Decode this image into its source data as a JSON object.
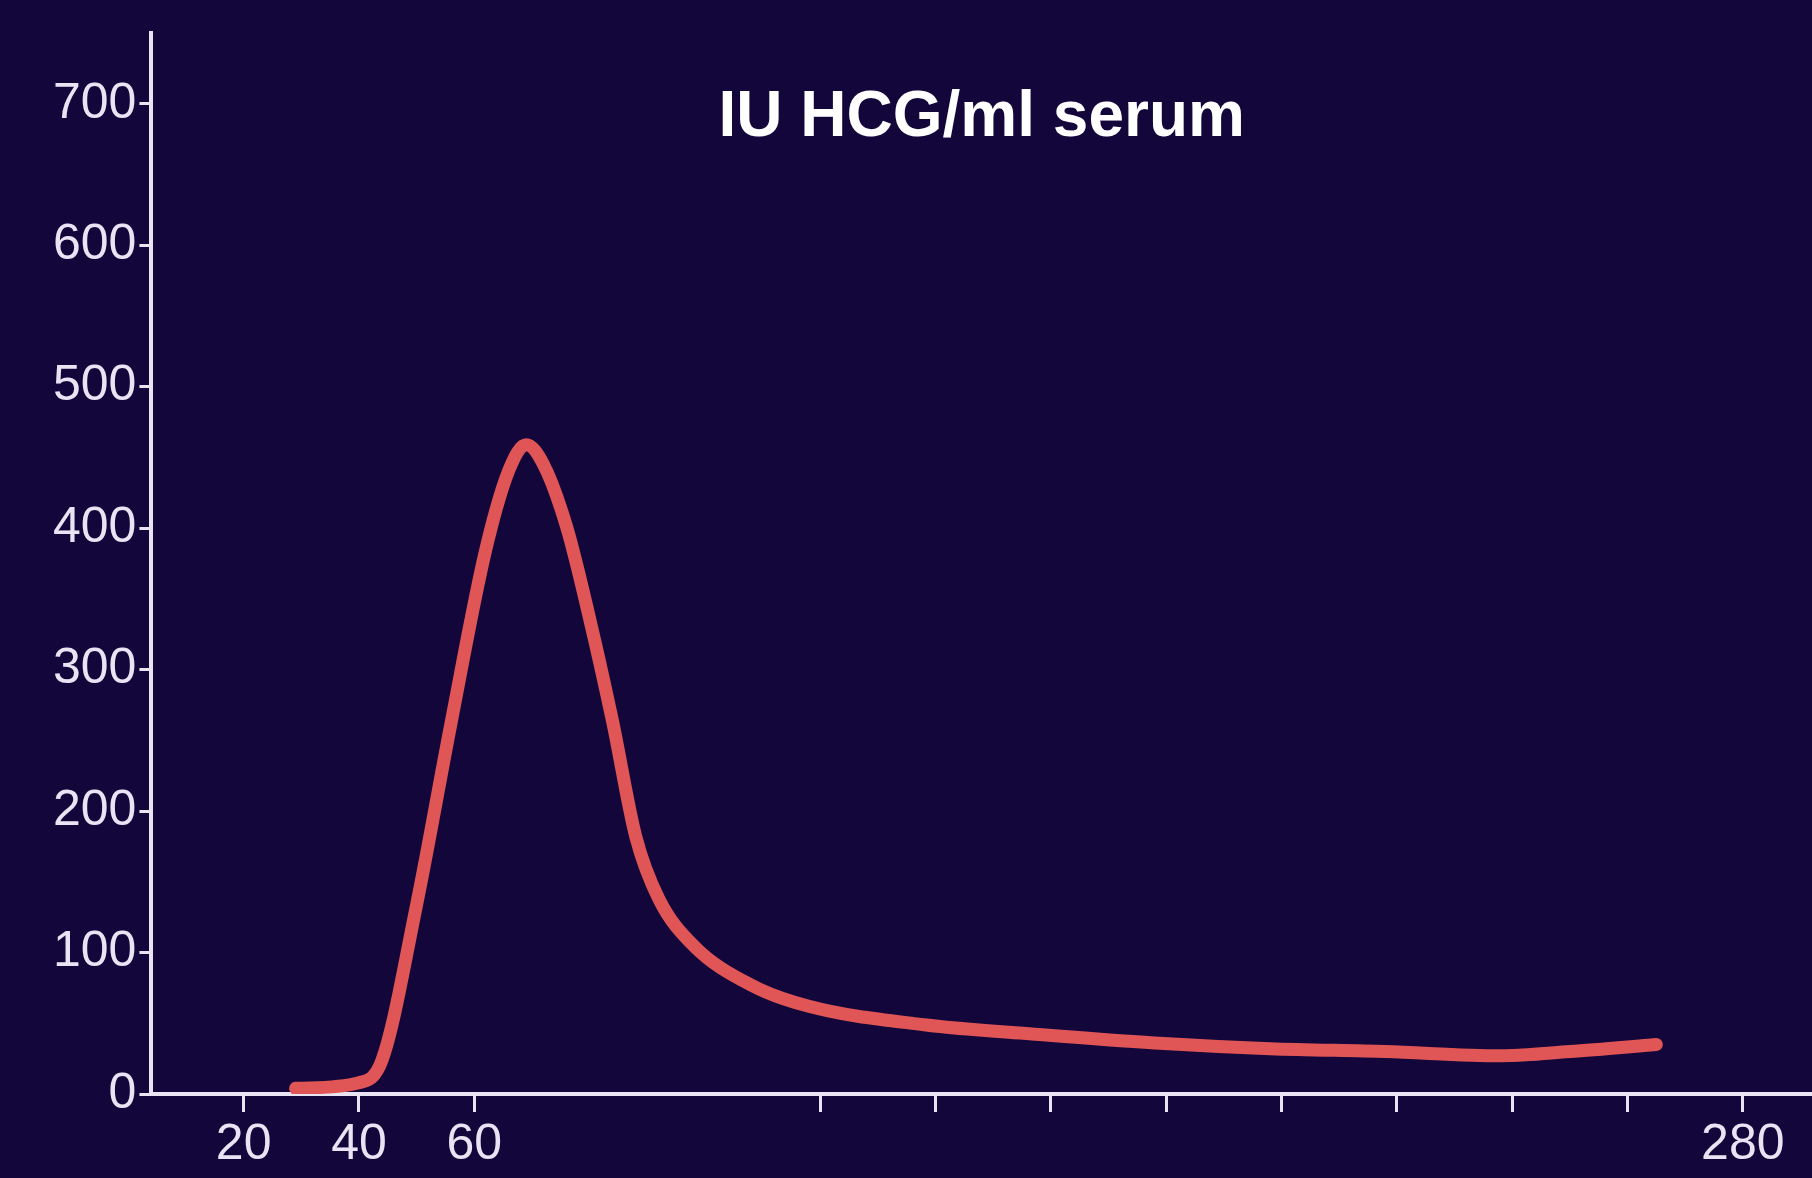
{
  "chart_data": {
    "type": "line",
    "title": "IU HCG/ml serum",
    "xlim": [
      4,
      292
    ],
    "xticks": [
      20,
      40,
      60,
      {
        "value": 120,
        "label": null
      },
      {
        "value": 140,
        "label": null
      },
      {
        "value": 160,
        "label": null
      },
      {
        "value": 180,
        "label": null
      },
      {
        "value": 200,
        "label": null
      },
      {
        "value": 220,
        "label": null
      },
      {
        "value": 240,
        "label": null
      },
      {
        "value": 260,
        "label": null
      },
      280
    ],
    "ylim": [
      0,
      750
    ],
    "yticks": [
      0,
      100,
      200,
      300,
      400,
      500,
      600,
      700
    ],
    "grid": false,
    "legend": false,
    "marker": "none",
    "series": [
      {
        "color": "#e05555",
        "x": [
          29,
          40,
          44,
          50,
          56,
          62,
          66,
          69,
          72,
          76,
          80,
          84,
          88,
          92,
          98,
          108,
          118,
          138,
          158,
          178,
          198,
          218,
          238,
          250,
          265
        ],
        "values": [
          4,
          8,
          24,
          134,
          263,
          385,
          441,
          459,
          445,
          401,
          336,
          263,
          182,
          138,
          105,
          77,
          62,
          49,
          42,
          36,
          32,
          30,
          27,
          30,
          35
        ]
      }
    ]
  }
}
